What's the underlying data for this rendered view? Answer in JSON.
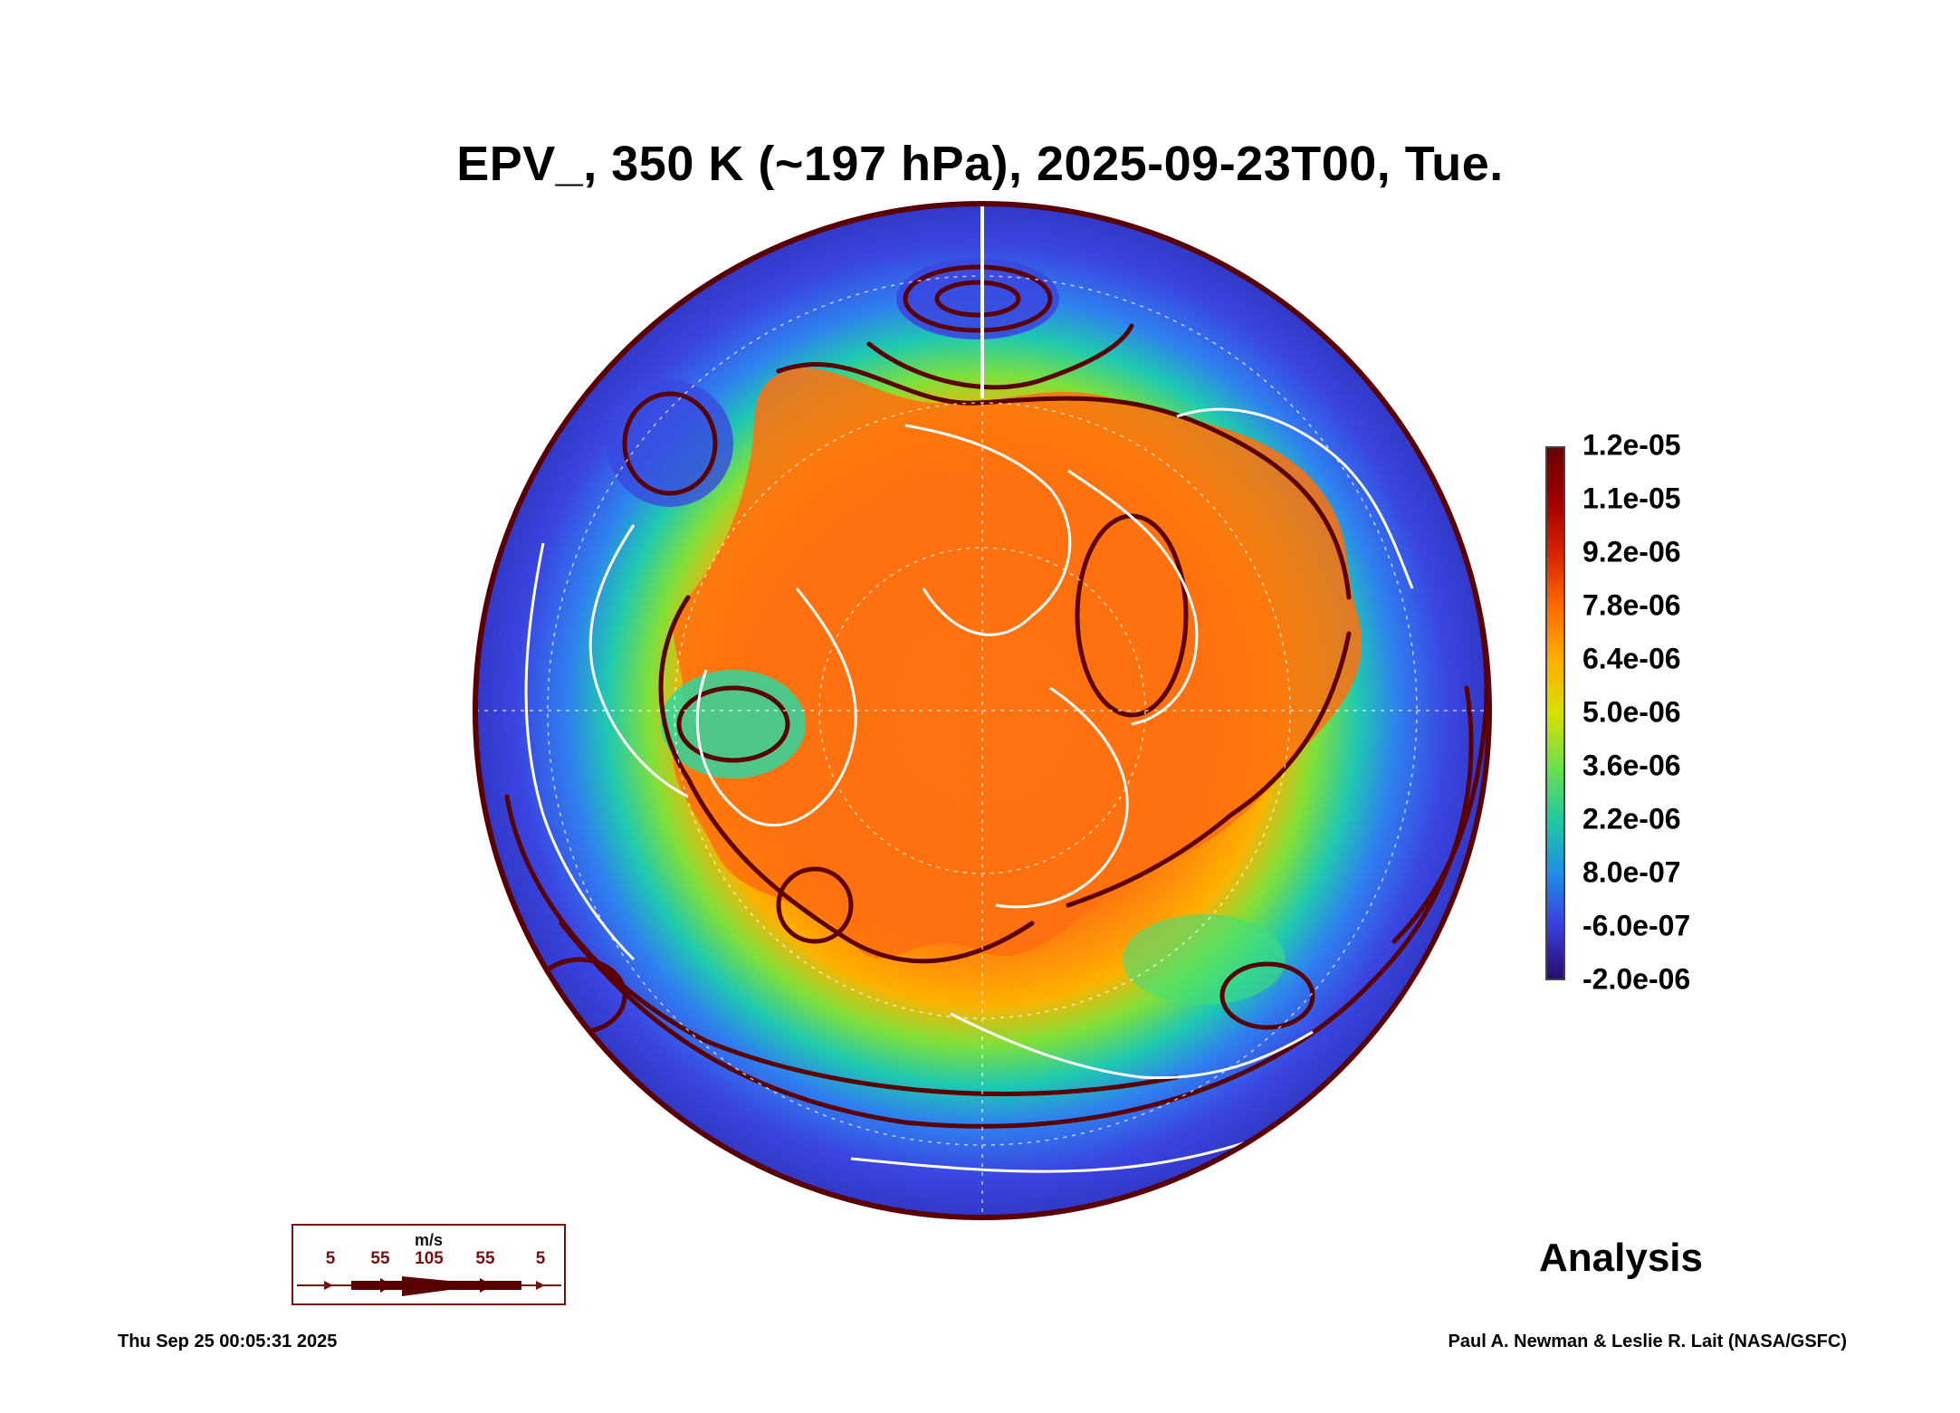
{
  "title": "EPV_, 350 K (~197 hPa), 2025-09-23T00, Tue.",
  "colorbar": {
    "labels": [
      "1.2e-05",
      "1.1e-05",
      "9.2e-06",
      "7.8e-06",
      "6.4e-06",
      "5.0e-06",
      "3.6e-06",
      "2.2e-06",
      "8.0e-07",
      "-6.0e-07",
      "-2.0e-06"
    ],
    "colors": [
      "#6b0000",
      "#a00000",
      "#d82400",
      "#ff6a00",
      "#ffae00",
      "#d7e000",
      "#6fe04a",
      "#1fc9a0",
      "#1f8fe8",
      "#3a3de0",
      "#2a0b6e"
    ]
  },
  "analysis_label": "Analysis",
  "wind_legend": {
    "unit": "m/s",
    "ticks": [
      "5",
      "55",
      "105",
      "55",
      "5"
    ]
  },
  "footer": {
    "timestamp": "Thu Sep 25 00:05:31 2025",
    "credit": "Paul A. Newman & Leslie R. Lait (NASA/GSFC)"
  },
  "map": {
    "outer_color": "#3b3fd6",
    "inner_color": "#ff8c1a",
    "ring_color": "#33d47a",
    "coast_color": "#ffffff",
    "stream_color": "#5a0000"
  }
}
